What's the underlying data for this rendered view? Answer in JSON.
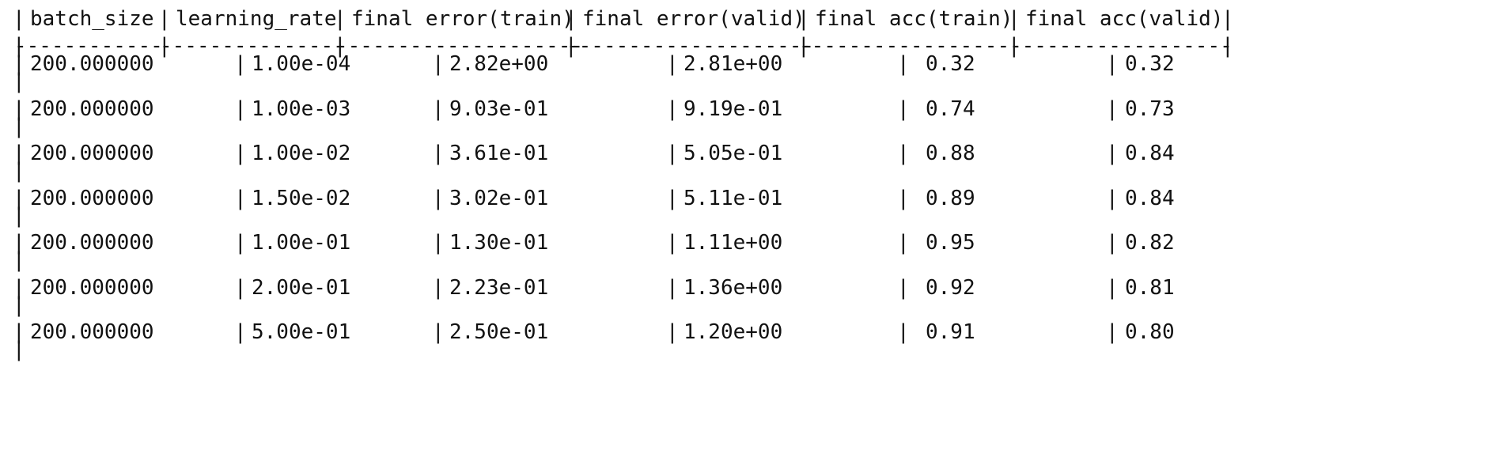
{
  "table": {
    "header": [
      "batch_size",
      "learning_rate",
      "final error(train)",
      "final error(valid)",
      "final acc(train)",
      "final acc(valid)"
    ],
    "separator": [
      "------------",
      "---------------",
      "--------------------",
      "--------------------",
      "------------------",
      "------------------"
    ],
    "rows": [
      [
        "200.000000",
        "1.00e-04",
        "2.82e+00",
        "2.81e+00",
        "0.32",
        "0.32"
      ],
      [
        "200.000000",
        "1.00e-03",
        "9.03e-01",
        "9.19e-01",
        "0.74",
        "0.73"
      ],
      [
        "200.000000",
        "1.00e-02",
        "3.61e-01",
        "5.05e-01",
        "0.88",
        "0.84"
      ],
      [
        "200.000000",
        "1.50e-02",
        "3.02e-01",
        "5.11e-01",
        "0.89",
        "0.84"
      ],
      [
        "200.000000",
        "1.00e-01",
        "1.30e-01",
        "1.11e+00",
        "0.95",
        "0.82"
      ],
      [
        "200.000000",
        "2.00e-01",
        "2.23e-01",
        "1.36e+00",
        "0.92",
        "0.81"
      ],
      [
        "200.000000",
        "5.00e-01",
        "2.50e-01",
        "1.20e+00",
        "0.91",
        "0.80"
      ]
    ]
  }
}
